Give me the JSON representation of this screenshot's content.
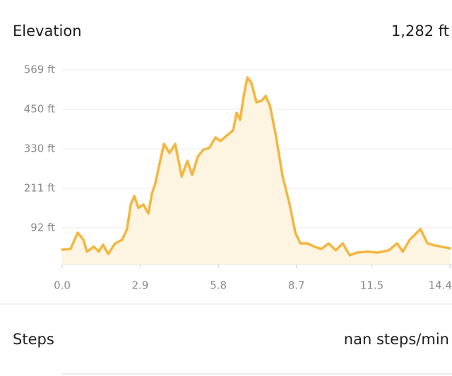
{
  "header": {
    "title": "Elevation",
    "value": "1,282 ft"
  },
  "chart_data": {
    "type": "area",
    "color": "#f4b63f",
    "fill": "#fdf4e1",
    "grid": true,
    "x": [
      0,
      0.31,
      0.58,
      0.79,
      0.92,
      1.18,
      1.36,
      1.52,
      1.71,
      1.97,
      2.23,
      2.41,
      2.55,
      2.68,
      2.83,
      3.02,
      3.2,
      3.33,
      3.46,
      3.6,
      3.78,
      3.99,
      4.2,
      4.44,
      4.65,
      4.83,
      5.04,
      5.25,
      5.46,
      5.7,
      5.88,
      6.09,
      6.35,
      6.48,
      6.61,
      6.75,
      6.88,
      7.03,
      7.22,
      7.4,
      7.56,
      7.72,
      7.93,
      8.19,
      8.45,
      8.66,
      8.85,
      9.11,
      9.37,
      9.63,
      9.9,
      10.16,
      10.42,
      10.68,
      10.94,
      11.34,
      11.73,
      12.13,
      12.44,
      12.65,
      12.91,
      13.12,
      13.31,
      13.57,
      13.83,
      14.09,
      14.4
    ],
    "values": [
      26,
      28,
      77,
      56,
      20,
      35,
      20,
      41,
      13,
      45,
      56,
      88,
      162,
      188,
      152,
      162,
      135,
      194,
      226,
      279,
      345,
      318,
      345,
      247,
      294,
      252,
      307,
      328,
      333,
      365,
      354,
      369,
      386,
      439,
      418,
      492,
      546,
      529,
      471,
      475,
      490,
      460,
      375,
      247,
      162,
      77,
      45,
      45,
      35,
      28,
      45,
      24,
      45,
      9,
      17,
      20,
      17,
      24,
      45,
      20,
      56,
      73,
      88,
      45,
      39,
      35,
      30
    ],
    "xlim": [
      0,
      14.4
    ],
    "xticks": [
      {
        "value": 0,
        "label": "0.0"
      },
      2.9,
      5.8,
      8.7,
      11.5,
      14.4
    ],
    "ylim": [
      -19,
      569
    ],
    "yticks": [
      {
        "value": 92,
        "label": "92 ft"
      },
      {
        "value": 211,
        "label": "211 ft"
      },
      {
        "value": 330,
        "label": "330 ft"
      },
      {
        "value": 450,
        "label": "450 ft"
      },
      {
        "value": 569,
        "label": "569 ft"
      }
    ]
  },
  "steps": {
    "title": "Steps",
    "value": "nan steps/min"
  }
}
